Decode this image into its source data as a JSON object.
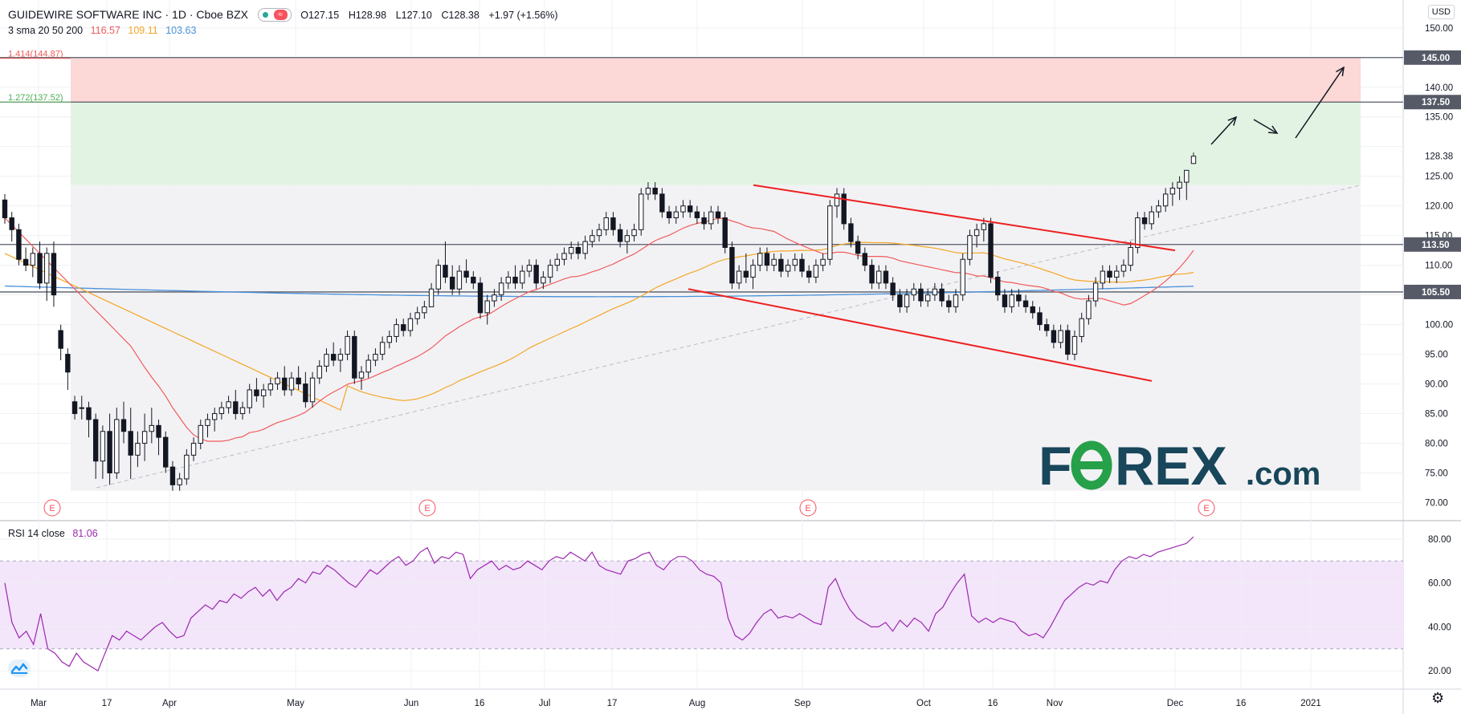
{
  "header": {
    "symbol": "GUIDEWIRE SOFTWARE INC · 1D · Cboe BZX",
    "open": "O127.15",
    "high": "H128.98",
    "low": "L127.10",
    "close": "C128.38",
    "change": "+1.97 (+1.56%)",
    "sma_label": "3 sma 20 50 200",
    "sma20": "116.57",
    "sma50": "109.11",
    "sma200": "103.63",
    "currency": "USD"
  },
  "fib": {
    "f1414_label": "1.414(144.87)",
    "f1272_label": "1.272(137.52)"
  },
  "rsi": {
    "label": "RSI 14 close",
    "value": "81.06"
  },
  "logo": {
    "text_left": "F",
    "text_right": "REX",
    "suffix": ".com"
  },
  "colors": {
    "up": "#ffffff",
    "down": "#131722",
    "sma20": "#f15b5b",
    "sma50": "#f5a623",
    "sma200": "#4a90d9",
    "rsi": "#9c27b0",
    "channel": "#ee2020",
    "target_zone": "#fcd8d6",
    "bull_zone": "#e3f3e3",
    "logo_blue": "#18465a",
    "logo_green": "#27a04a"
  },
  "chart_data": [
    {
      "type": "candlestick",
      "title": "GUIDEWIRE SOFTWARE INC · 1D · Cboe BZX",
      "x_ticks": [
        "Mar",
        "17",
        "Apr",
        "May",
        "Jun",
        "16",
        "Jul",
        "17",
        "Aug",
        "Sep",
        "Oct",
        "16",
        "Nov",
        "Dec",
        "16",
        "2021"
      ],
      "y_ticks": [
        70,
        75,
        80,
        85,
        90,
        95,
        100,
        105,
        110,
        115,
        120,
        125,
        130,
        135,
        140,
        145,
        150
      ],
      "ylim": [
        67.5,
        152
      ],
      "price_levels": [
        145.0,
        137.5,
        113.5,
        105.5
      ],
      "last_price": 128.38,
      "earnings_markers": [
        "E",
        "E",
        "E",
        "E"
      ],
      "candles": [
        [
          121,
          122,
          117,
          118
        ],
        [
          118,
          119,
          114,
          116
        ],
        [
          116,
          117,
          110,
          111
        ],
        [
          111,
          113,
          109,
          110
        ],
        [
          110,
          113,
          108,
          112
        ],
        [
          112,
          114,
          106,
          107
        ],
        [
          107,
          113,
          104,
          112
        ],
        [
          112,
          114,
          103,
          105
        ],
        [
          99,
          100,
          94,
          96
        ],
        [
          95,
          96,
          89,
          92
        ],
        [
          87,
          88,
          84,
          85
        ],
        [
          86,
          88,
          84,
          86
        ],
        [
          86,
          87,
          81,
          84
        ],
        [
          84,
          85,
          74,
          77
        ],
        [
          77,
          83,
          74,
          82
        ],
        [
          82,
          85,
          73,
          75
        ],
        [
          75,
          86,
          74,
          84
        ],
        [
          84,
          87,
          80,
          82
        ],
        [
          82,
          86,
          74,
          78
        ],
        [
          78,
          82,
          76,
          80
        ],
        [
          80,
          85,
          77,
          82
        ],
        [
          82,
          86,
          80,
          83
        ],
        [
          83,
          84,
          78,
          81
        ],
        [
          81,
          82,
          75,
          76
        ],
        [
          76,
          77,
          72,
          73
        ],
        [
          73,
          75,
          72,
          74
        ],
        [
          74,
          79,
          73,
          78
        ],
        [
          78,
          81,
          77,
          80
        ],
        [
          80,
          84,
          79,
          83
        ],
        [
          83,
          85,
          81,
          84
        ],
        [
          84,
          86,
          82,
          85
        ],
        [
          85,
          87,
          84,
          86
        ],
        [
          86,
          88,
          85,
          87
        ],
        [
          87,
          89,
          84,
          85
        ],
        [
          85,
          87,
          84,
          86
        ],
        [
          86,
          90,
          85,
          89
        ],
        [
          89,
          91,
          87,
          88
        ],
        [
          88,
          90,
          86,
          89
        ],
        [
          89,
          91,
          88,
          90
        ],
        [
          90,
          92,
          89,
          91
        ],
        [
          91,
          93,
          88,
          89
        ],
        [
          89,
          92,
          88,
          91
        ],
        [
          91,
          93,
          89,
          90
        ],
        [
          90,
          92,
          86,
          87
        ],
        [
          87,
          92,
          86,
          91
        ],
        [
          91,
          94,
          90,
          93
        ],
        [
          93,
          96,
          92,
          95
        ],
        [
          95,
          97,
          93,
          94
        ],
        [
          94,
          96,
          92,
          95
        ],
        [
          95,
          99,
          94,
          98
        ],
        [
          98,
          99,
          90,
          91
        ],
        [
          91,
          93,
          89,
          92
        ],
        [
          92,
          95,
          91,
          94
        ],
        [
          94,
          96,
          93,
          95
        ],
        [
          95,
          98,
          94,
          97
        ],
        [
          97,
          99,
          96,
          98
        ],
        [
          98,
          101,
          97,
          100
        ],
        [
          100,
          101,
          98,
          99
        ],
        [
          99,
          102,
          98,
          101
        ],
        [
          101,
          103,
          100,
          102
        ],
        [
          102,
          104,
          101,
          103
        ],
        [
          103,
          107,
          103,
          106
        ],
        [
          106,
          111,
          105,
          110
        ],
        [
          110,
          114,
          107,
          108
        ],
        [
          108,
          110,
          105,
          106
        ],
        [
          106,
          110,
          105,
          109
        ],
        [
          109,
          111,
          107,
          108
        ],
        [
          108,
          109,
          106,
          107
        ],
        [
          107,
          108,
          101,
          102
        ],
        [
          102,
          105,
          100,
          104
        ],
        [
          104,
          106,
          103,
          105
        ],
        [
          105,
          108,
          104,
          107
        ],
        [
          107,
          109,
          106,
          108
        ],
        [
          108,
          110,
          106,
          107
        ],
        [
          107,
          110,
          106,
          109
        ],
        [
          109,
          111,
          108,
          110
        ],
        [
          110,
          111,
          106,
          107
        ],
        [
          107,
          109,
          106,
          108
        ],
        [
          108,
          111,
          107,
          110
        ],
        [
          110,
          112,
          109,
          111
        ],
        [
          111,
          113,
          110,
          112
        ],
        [
          112,
          114,
          111,
          113
        ],
        [
          113,
          114,
          111,
          112
        ],
        [
          112,
          115,
          111,
          114
        ],
        [
          114,
          116,
          113,
          115
        ],
        [
          115,
          117,
          114,
          116
        ],
        [
          116,
          119,
          115,
          118
        ],
        [
          118,
          119,
          115,
          116
        ],
        [
          116,
          117,
          113,
          114
        ],
        [
          114,
          116,
          112,
          115
        ],
        [
          115,
          117,
          114,
          116
        ],
        [
          116,
          123,
          115,
          122
        ],
        [
          122,
          124,
          121,
          123
        ],
        [
          123,
          124,
          121,
          122
        ],
        [
          122,
          123,
          118,
          119
        ],
        [
          119,
          120,
          117,
          118
        ],
        [
          118,
          120,
          117,
          119
        ],
        [
          119,
          121,
          118,
          120
        ],
        [
          120,
          121,
          118,
          119
        ],
        [
          119,
          120,
          117,
          118
        ],
        [
          118,
          119,
          116,
          117
        ],
        [
          117,
          120,
          116,
          119
        ],
        [
          119,
          120,
          117,
          118
        ],
        [
          118,
          119,
          112,
          113
        ],
        [
          113,
          114,
          106,
          107
        ],
        [
          107,
          110,
          106,
          109
        ],
        [
          109,
          112,
          107,
          108
        ],
        [
          108,
          111,
          106,
          110
        ],
        [
          110,
          113,
          109,
          112
        ],
        [
          112,
          113,
          109,
          110
        ],
        [
          110,
          112,
          109,
          111
        ],
        [
          111,
          112,
          108,
          109
        ],
        [
          109,
          111,
          108,
          110
        ],
        [
          110,
          112,
          109,
          111
        ],
        [
          111,
          112,
          108,
          109
        ],
        [
          109,
          110,
          107,
          108
        ],
        [
          108,
          111,
          107,
          110
        ],
        [
          110,
          112,
          109,
          111
        ],
        [
          111,
          121,
          110,
          120
        ],
        [
          120,
          123,
          118,
          122
        ],
        [
          122,
          123,
          116,
          117
        ],
        [
          117,
          118,
          113,
          114
        ],
        [
          114,
          115,
          111,
          112
        ],
        [
          112,
          113,
          109,
          110
        ],
        [
          110,
          111,
          106,
          107
        ],
        [
          107,
          110,
          106,
          109
        ],
        [
          109,
          110,
          106,
          107
        ],
        [
          107,
          108,
          104,
          105
        ],
        [
          105,
          106,
          102,
          103
        ],
        [
          103,
          106,
          102,
          105
        ],
        [
          105,
          107,
          104,
          106
        ],
        [
          106,
          107,
          103,
          104
        ],
        [
          104,
          106,
          103,
          105
        ],
        [
          105,
          107,
          104,
          106
        ],
        [
          106,
          107,
          103,
          104
        ],
        [
          104,
          105,
          102,
          103
        ],
        [
          103,
          106,
          102,
          105
        ],
        [
          105,
          112,
          104,
          111
        ],
        [
          111,
          116,
          110,
          115
        ],
        [
          115,
          117,
          113,
          116
        ],
        [
          116,
          118,
          114,
          117
        ],
        [
          117,
          118,
          107,
          108
        ],
        [
          108,
          109,
          104,
          105
        ],
        [
          105,
          106,
          102,
          103
        ],
        [
          103,
          106,
          102,
          105
        ],
        [
          105,
          106,
          103,
          104
        ],
        [
          104,
          105,
          102,
          103
        ],
        [
          103,
          104,
          101,
          102
        ],
        [
          102,
          103,
          99,
          100
        ],
        [
          100,
          101,
          98,
          99
        ],
        [
          99,
          100,
          96,
          97
        ],
        [
          97,
          100,
          96,
          99
        ],
        [
          99,
          100,
          94,
          95
        ],
        [
          95,
          99,
          94,
          98
        ],
        [
          98,
          102,
          97,
          101
        ],
        [
          101,
          105,
          100,
          104
        ],
        [
          104,
          108,
          103,
          107
        ],
        [
          107,
          110,
          106,
          109
        ],
        [
          109,
          110,
          107,
          108
        ],
        [
          108,
          110,
          107,
          109
        ],
        [
          109,
          111,
          108,
          110
        ],
        [
          110,
          114,
          109,
          113
        ],
        [
          113,
          119,
          112,
          118
        ],
        [
          118,
          119,
          116,
          117
        ],
        [
          117,
          120,
          116,
          119
        ],
        [
          119,
          121,
          118,
          120
        ],
        [
          120,
          123,
          119,
          122
        ],
        [
          122,
          124,
          120,
          123
        ],
        [
          123,
          125,
          121,
          124
        ],
        [
          124,
          126,
          121,
          126
        ],
        [
          127.15,
          128.98,
          127.1,
          128.38
        ]
      ]
    },
    {
      "type": "line",
      "title": "RSI 14 close",
      "y_ticks": [
        20,
        40,
        60,
        80
      ],
      "ylim": [
        12,
        88
      ],
      "bands": [
        30,
        70
      ],
      "series": [
        {
          "name": "RSI 14 close",
          "values": [
            60,
            42,
            35,
            38,
            32,
            46,
            30,
            28,
            24,
            22,
            28,
            24,
            22,
            20,
            28,
            36,
            34,
            38,
            36,
            34,
            37,
            40,
            42,
            38,
            35,
            36,
            44,
            47,
            50,
            48,
            52,
            51,
            55,
            53,
            56,
            58,
            54,
            57,
            52,
            56,
            58,
            62,
            60,
            65,
            64,
            68,
            66,
            63,
            60,
            58,
            62,
            66,
            64,
            67,
            70,
            72,
            68,
            70,
            74,
            76,
            69,
            72,
            71,
            74,
            73,
            62,
            66,
            68,
            70,
            66,
            68,
            66,
            67,
            70,
            68,
            66,
            70,
            72,
            71,
            74,
            72,
            70,
            74,
            68,
            66,
            65,
            64,
            70,
            71,
            73,
            74,
            68,
            66,
            70,
            72,
            72,
            70,
            66,
            64,
            63,
            60,
            44,
            36,
            34,
            37,
            42,
            46,
            48,
            44,
            45,
            44,
            46,
            44,
            42,
            41,
            58,
            62,
            54,
            48,
            44,
            42,
            40,
            40,
            42,
            38,
            43,
            40,
            44,
            42,
            38,
            46,
            49,
            55,
            60,
            64,
            45,
            42,
            44,
            42,
            44,
            43,
            42,
            38,
            36,
            37,
            35,
            40,
            46,
            52,
            55,
            58,
            60,
            59,
            61,
            60,
            66,
            70,
            72,
            71,
            73,
            72,
            74,
            75,
            76,
            77,
            78,
            81.06
          ]
        }
      ]
    }
  ]
}
